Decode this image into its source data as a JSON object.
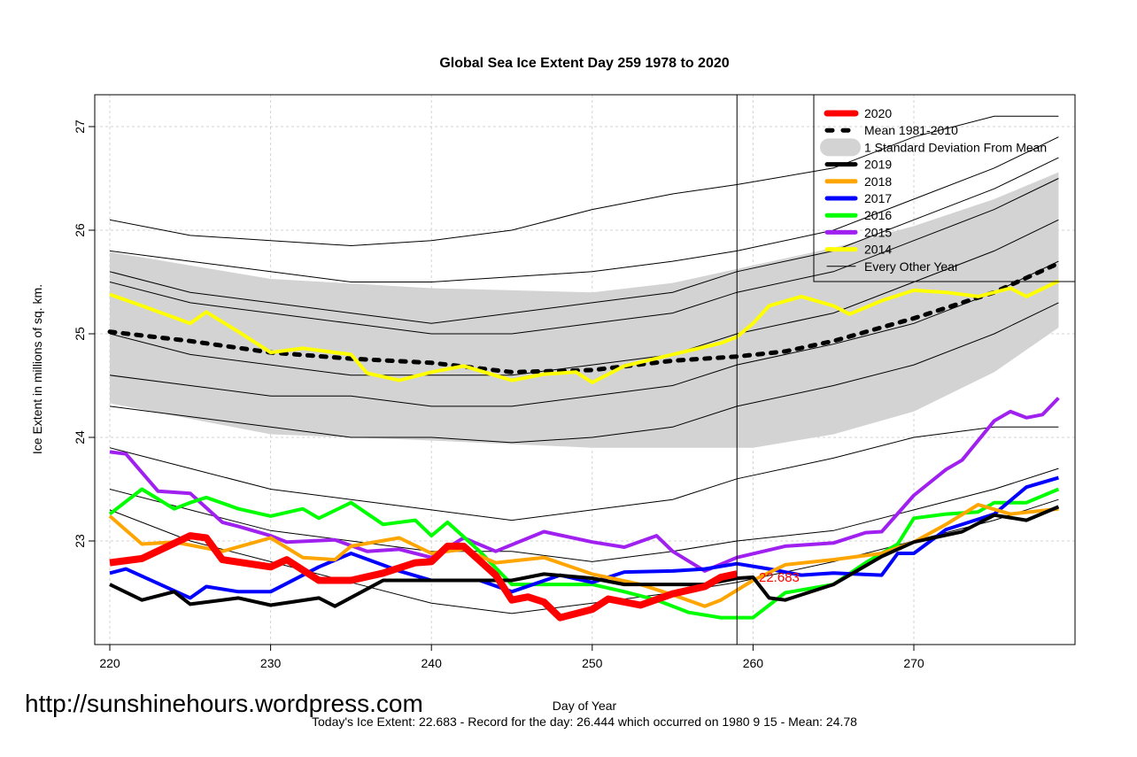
{
  "chart_data": {
    "type": "line",
    "title": "Global Sea Ice Extent Day 259 1978 to 2020",
    "xlabel": "Day of Year",
    "ylabel": "Ice Extent in millions of sq. km.",
    "xlim": [
      219,
      280
    ],
    "ylim": [
      22.0,
      27.3
    ],
    "xticks": [
      220,
      230,
      240,
      250,
      260,
      270
    ],
    "yticks": [
      23,
      24,
      25,
      26,
      27
    ],
    "grid": true,
    "legend_placement": "top-right",
    "current_day_marker": 259,
    "current_value_label": "22.683",
    "subtitle": "Today's Ice Extent: 22.683  - Record for the day: 26.444 which occurred on 1980 9 15  - Mean: 24.78",
    "watermark": "http://sunshinehours.wordpress.com",
    "legend": [
      {
        "label": "2020",
        "color": "#ff0000",
        "style": "thick"
      },
      {
        "label": "Mean 1981-2010",
        "color": "#000000",
        "style": "dotted"
      },
      {
        "label": "1 Standard Deviation From Mean",
        "color": "#d3d3d3",
        "style": "band"
      },
      {
        "label": "2019",
        "color": "#000000",
        "style": "solid"
      },
      {
        "label": "2018",
        "color": "#ffa500",
        "style": "solid"
      },
      {
        "label": "2017",
        "color": "#0000ff",
        "style": "solid"
      },
      {
        "label": "2016",
        "color": "#00ff00",
        "style": "solid"
      },
      {
        "label": "2015",
        "color": "#a020f0",
        "style": "solid"
      },
      {
        "label": "2014",
        "color": "#ffff00",
        "style": "solid"
      },
      {
        "label": "Every Other Year",
        "color": "#000000",
        "style": "thin"
      }
    ],
    "sd_band": {
      "x": [
        220,
        230,
        240,
        250,
        255,
        260,
        265,
        270,
        275,
        279
      ],
      "upper": [
        25.79,
        25.53,
        25.44,
        25.4,
        25.49,
        25.66,
        25.83,
        26.04,
        26.3,
        26.56
      ],
      "lower": [
        24.33,
        24.03,
        23.97,
        23.9,
        23.9,
        23.9,
        24.03,
        24.25,
        24.63,
        25.06
      ]
    },
    "mean": {
      "x": [
        220,
        225,
        230,
        235,
        240,
        245,
        250,
        255,
        259,
        262,
        265,
        270,
        275,
        279
      ],
      "y": [
        25.02,
        24.93,
        24.82,
        24.76,
        24.72,
        24.63,
        24.65,
        24.74,
        24.78,
        24.83,
        24.93,
        25.15,
        25.4,
        25.68
      ]
    },
    "other_years": {
      "x": [
        220,
        225,
        230,
        235,
        240,
        245,
        250,
        255,
        259,
        265,
        270,
        275,
        279
      ],
      "series": [
        [
          26.1,
          25.95,
          25.9,
          25.85,
          25.9,
          26.0,
          26.2,
          26.35,
          26.44,
          26.6,
          26.9,
          27.1,
          27.1
        ],
        [
          25.8,
          25.7,
          25.6,
          25.5,
          25.5,
          25.55,
          25.6,
          25.7,
          25.8,
          26.0,
          26.3,
          26.6,
          26.9
        ],
        [
          25.6,
          25.4,
          25.3,
          25.2,
          25.1,
          25.2,
          25.3,
          25.4,
          25.6,
          25.8,
          26.1,
          26.4,
          26.7
        ],
        [
          25.5,
          25.3,
          25.2,
          25.1,
          25.0,
          25.0,
          25.1,
          25.2,
          25.4,
          25.6,
          25.9,
          26.2,
          26.5
        ],
        [
          25.0,
          24.8,
          24.7,
          24.6,
          24.6,
          24.6,
          24.7,
          24.8,
          25.0,
          25.2,
          25.5,
          25.8,
          26.1
        ],
        [
          24.6,
          24.5,
          24.4,
          24.4,
          24.3,
          24.3,
          24.4,
          24.5,
          24.7,
          24.9,
          25.1,
          25.4,
          25.7
        ],
        [
          24.3,
          24.2,
          24.1,
          24.0,
          24.0,
          23.95,
          24.0,
          24.1,
          24.3,
          24.5,
          24.7,
          25.0,
          25.3
        ],
        [
          23.9,
          23.7,
          23.5,
          23.4,
          23.3,
          23.2,
          23.3,
          23.4,
          23.6,
          23.8,
          24.0,
          24.1,
          24.1
        ],
        [
          23.5,
          23.3,
          23.1,
          23.0,
          22.9,
          22.9,
          22.8,
          22.9,
          23.0,
          23.1,
          23.3,
          23.5,
          23.7
        ],
        [
          23.3,
          23.0,
          22.8,
          22.6,
          22.4,
          22.3,
          22.4,
          22.5,
          22.6,
          22.8,
          23.0,
          23.2,
          23.4
        ]
      ]
    },
    "series": [
      {
        "name": "2014",
        "color": "#ffff00",
        "x": [
          220,
          222,
          225,
          226,
          228,
          230,
          232,
          235,
          236,
          238,
          240,
          242,
          245,
          247,
          249,
          250,
          252,
          255,
          258,
          259,
          260,
          261,
          263,
          265,
          266,
          268,
          270,
          272,
          274,
          276,
          277,
          279
        ],
        "y": [
          25.38,
          25.27,
          25.1,
          25.21,
          25.02,
          24.82,
          24.86,
          24.8,
          24.62,
          24.55,
          24.63,
          24.69,
          24.55,
          24.61,
          24.63,
          24.53,
          24.69,
          24.8,
          24.91,
          24.97,
          25.1,
          25.27,
          25.36,
          25.27,
          25.19,
          25.32,
          25.42,
          25.4,
          25.36,
          25.44,
          25.36,
          25.51
        ]
      },
      {
        "name": "2015",
        "color": "#a020f0",
        "x": [
          220,
          221,
          223,
          225,
          227,
          228,
          230,
          231,
          234,
          236,
          238,
          240,
          242,
          244,
          247,
          250,
          252,
          254,
          255,
          257,
          259,
          262,
          265,
          267,
          268,
          270,
          272,
          273,
          275,
          276,
          277,
          278,
          279
        ],
        "y": [
          23.86,
          23.84,
          23.48,
          23.46,
          23.18,
          23.14,
          23.05,
          22.99,
          23.01,
          22.9,
          22.92,
          22.84,
          23.03,
          22.9,
          23.09,
          22.99,
          22.94,
          23.05,
          22.9,
          22.71,
          22.84,
          22.95,
          22.98,
          23.08,
          23.09,
          23.44,
          23.69,
          23.78,
          24.16,
          24.25,
          24.19,
          24.22,
          24.38
        ]
      },
      {
        "name": "2016",
        "color": "#00ff00",
        "x": [
          220,
          222,
          224,
          225,
          226,
          228,
          230,
          232,
          233,
          235,
          237,
          239,
          240,
          241,
          243,
          245,
          247,
          250,
          252,
          254,
          256,
          258,
          260,
          262,
          265,
          267,
          269,
          270,
          272,
          274,
          275,
          277,
          279
        ],
        "y": [
          23.26,
          23.5,
          23.31,
          23.37,
          23.42,
          23.31,
          23.24,
          23.31,
          23.22,
          23.37,
          23.16,
          23.2,
          23.05,
          23.18,
          22.9,
          22.58,
          22.58,
          22.58,
          22.51,
          22.43,
          22.31,
          22.26,
          22.26,
          22.5,
          22.58,
          22.79,
          22.97,
          23.22,
          23.26,
          23.28,
          23.37,
          23.37,
          23.5
        ]
      },
      {
        "name": "2017",
        "color": "#0000ff",
        "x": [
          220,
          221,
          225,
          226,
          228,
          230,
          233,
          235,
          238,
          240,
          243,
          245,
          248,
          250,
          252,
          255,
          257,
          259,
          261,
          263,
          265,
          268,
          269,
          270,
          272,
          275,
          277,
          279
        ],
        "y": [
          22.69,
          22.73,
          22.45,
          22.56,
          22.51,
          22.51,
          22.75,
          22.88,
          22.71,
          22.62,
          22.62,
          22.51,
          22.67,
          22.6,
          22.7,
          22.71,
          22.73,
          22.78,
          22.73,
          22.67,
          22.69,
          22.67,
          22.88,
          22.88,
          23.11,
          23.26,
          23.52,
          23.61
        ]
      },
      {
        "name": "2018",
        "color": "#ffa500",
        "x": [
          220,
          222,
          224,
          227,
          230,
          232,
          234,
          235,
          238,
          240,
          242,
          244,
          247,
          250,
          253,
          255,
          257,
          258,
          260,
          262,
          265,
          268,
          270,
          272,
          274,
          276,
          279
        ],
        "y": [
          23.24,
          22.97,
          22.99,
          22.9,
          23.03,
          22.84,
          22.82,
          22.95,
          23.03,
          22.88,
          22.92,
          22.79,
          22.84,
          22.68,
          22.58,
          22.48,
          22.37,
          22.43,
          22.62,
          22.77,
          22.82,
          22.88,
          22.99,
          23.16,
          23.35,
          23.26,
          23.31
        ]
      },
      {
        "name": "2019",
        "color": "#000000",
        "x": [
          220,
          222,
          224,
          225,
          228,
          230,
          233,
          234,
          237,
          240,
          245,
          247,
          250,
          252,
          255,
          257,
          259,
          260,
          261,
          262,
          265,
          268,
          270,
          273,
          275,
          277,
          279
        ],
        "y": [
          22.58,
          22.43,
          22.51,
          22.39,
          22.45,
          22.38,
          22.45,
          22.37,
          22.62,
          22.62,
          22.62,
          22.68,
          22.64,
          22.58,
          22.58,
          22.58,
          22.64,
          22.65,
          22.45,
          22.43,
          22.58,
          22.85,
          22.99,
          23.09,
          23.25,
          23.2,
          23.33
        ]
      },
      {
        "name": "2020",
        "color": "#ff0000",
        "x": [
          220,
          222,
          225,
          226,
          227,
          230,
          231,
          233,
          235,
          237,
          239,
          240,
          241,
          242,
          244,
          245,
          246,
          247,
          248,
          250,
          251,
          253,
          255,
          257,
          258,
          259
        ],
        "y": [
          22.79,
          22.83,
          23.05,
          23.03,
          22.82,
          22.75,
          22.82,
          22.62,
          22.62,
          22.69,
          22.79,
          22.8,
          22.95,
          22.95,
          22.67,
          22.43,
          22.46,
          22.41,
          22.26,
          22.34,
          22.44,
          22.38,
          22.49,
          22.56,
          22.65,
          22.683
        ]
      }
    ]
  }
}
